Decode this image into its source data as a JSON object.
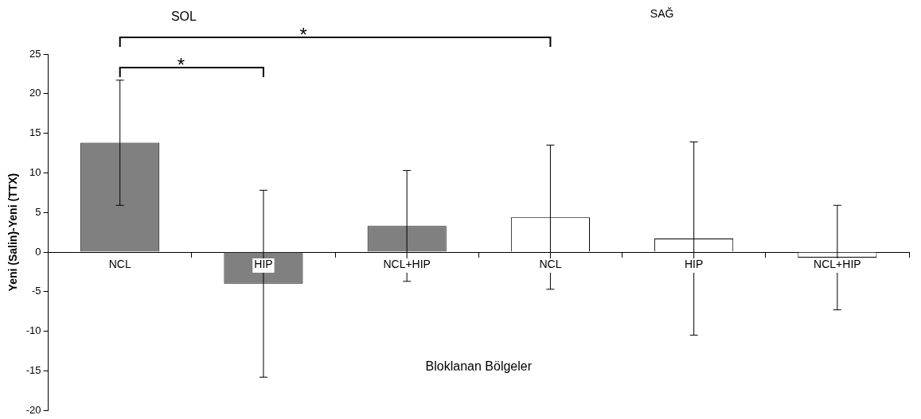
{
  "chart_data": {
    "type": "bar",
    "ylabel": "Yeni (Salin)-Yeni (TTX)",
    "xlabel": "Bloklanan Bölgeler",
    "categories": [
      "NCL",
      "HIP",
      "NCL+HIP",
      "NCL",
      "HIP",
      "NCL+HIP"
    ],
    "values": [
      13.8,
      -4.0,
      3.3,
      4.4,
      1.7,
      -0.7
    ],
    "errors": [
      7.9,
      11.8,
      7.0,
      9.1,
      12.2,
      6.6
    ],
    "colors": [
      "#808080",
      "#808080",
      "#808080",
      "#ffffff",
      "#ffffff",
      "#ffffff"
    ],
    "ylim": [
      -20,
      25
    ],
    "yticks": [
      -20,
      -15,
      -10,
      -5,
      0,
      5,
      10,
      15,
      20,
      25
    ],
    "grid": false,
    "legend": false,
    "annotations": [
      "SOL",
      "SAĞ",
      "*",
      "*"
    ]
  }
}
